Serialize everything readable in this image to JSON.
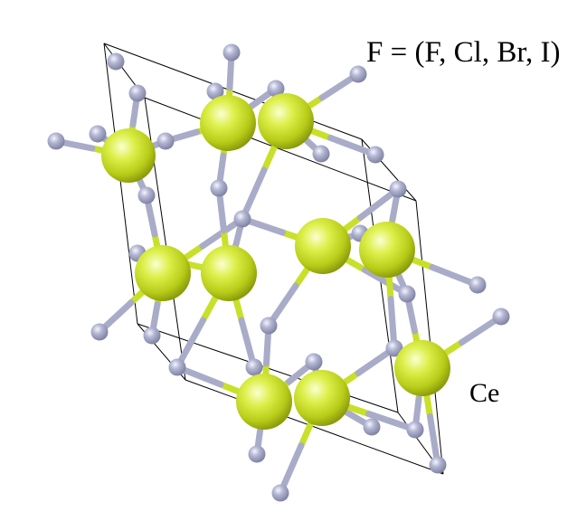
{
  "annotations": {
    "anion_label": "F = (F, Cl, Br, I)",
    "cation_label": "Ce"
  },
  "colors": {
    "cation": "#c8e02a",
    "anion": "#a9acc8",
    "cell_edge": "#000000",
    "background": "#ffffff"
  },
  "structure": {
    "cation_element": "Ce",
    "anion_element": "F"
  }
}
